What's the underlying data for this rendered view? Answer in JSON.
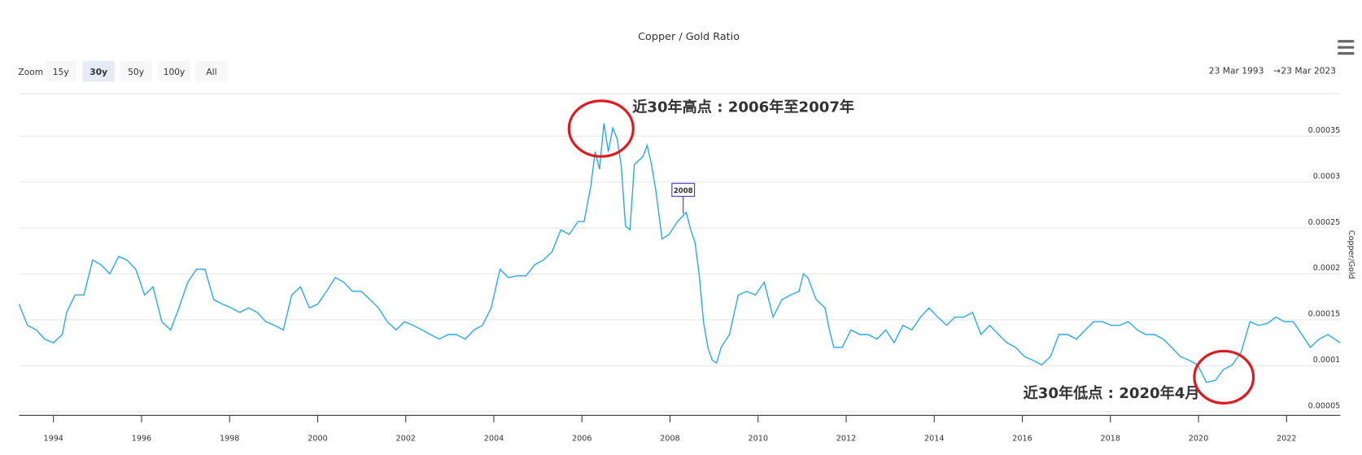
{
  "chart_data": {
    "type": "line",
    "title": "Copper / Gold Ratio",
    "zoom_label": "Zoom",
    "zoom_buttons": [
      "15y",
      "30y",
      "50y",
      "100y",
      "All"
    ],
    "selected_zoom": "30y",
    "date_range": {
      "from": "23 Mar 1993",
      "separator": "→",
      "to": "23 Mar 2023"
    },
    "y_label": "Copper/Gold",
    "xlim": [
      1993.22,
      2023.22
    ],
    "xticks": [
      1994,
      1996,
      1998,
      2000,
      2002,
      2004,
      2006,
      2008,
      2010,
      2012,
      2014,
      2016,
      2018,
      2020,
      2022
    ],
    "ylim": [
      4.6e-05,
      0.000396
    ],
    "yticks": [
      5e-05,
      0.0001,
      0.00015,
      0.0002,
      0.00025,
      0.0003,
      0.00035
    ],
    "grid": true,
    "series": [
      {
        "name": "Copper/Gold",
        "color": "#29a8e8",
        "x": [
          1993.22,
          1993.41,
          1993.61,
          1993.8,
          1994,
          1994.2,
          1994.3,
          1994.49,
          1994.69,
          1994.89,
          1995.08,
          1995.28,
          1995.48,
          1995.67,
          1995.87,
          1996.07,
          1996.26,
          1996.46,
          1996.66,
          1996.85,
          1997.05,
          1997.25,
          1997.44,
          1997.64,
          1997.84,
          1998.04,
          1998.23,
          1998.43,
          1998.63,
          1998.82,
          1999.02,
          1999.22,
          1999.41,
          1999.61,
          1999.81,
          2000.0,
          2000.2,
          2000.4,
          2000.59,
          2000.79,
          2000.99,
          2001.19,
          2001.38,
          2001.58,
          2001.78,
          2001.97,
          2002.17,
          2002.37,
          2002.56,
          2002.76,
          2002.96,
          2003.15,
          2003.35,
          2003.55,
          2003.74,
          2003.94,
          2004.14,
          2004.33,
          2004.53,
          2004.73,
          2004.93,
          2005.12,
          2005.32,
          2005.52,
          2005.71,
          2005.91,
          2006.05,
          2006.2,
          2006.3,
          2006.4,
          2006.5,
          2006.6,
          2006.7,
          2006.8,
          2006.89,
          2006.99,
          2007.09,
          2007.19,
          2007.39,
          2007.48,
          2007.58,
          2007.68,
          2007.82,
          2007.98,
          2008.17,
          2008.27,
          2008.37,
          2008.47,
          2008.57,
          2008.67,
          2008.76,
          2008.86,
          2008.96,
          2009.06,
          2009.16,
          2009.35,
          2009.55,
          2009.75,
          2009.94,
          2010.14,
          2010.34,
          2010.54,
          2010.73,
          2010.93,
          2011.03,
          2011.13,
          2011.32,
          2011.52,
          2011.62,
          2011.72,
          2011.91,
          2012.11,
          2012.31,
          2012.5,
          2012.7,
          2012.9,
          2013.09,
          2013.29,
          2013.49,
          2013.69,
          2013.88,
          2014.08,
          2014.28,
          2014.47,
          2014.67,
          2014.87,
          2015.06,
          2015.26,
          2015.46,
          2015.65,
          2015.85,
          2016.05,
          2016.24,
          2016.44,
          2016.64,
          2016.83,
          2017.03,
          2017.23,
          2017.43,
          2017.62,
          2017.82,
          2018.02,
          2018.21,
          2018.41,
          2018.61,
          2018.8,
          2019.0,
          2019.2,
          2019.39,
          2019.59,
          2019.79,
          2019.98,
          2020.18,
          2020.38,
          2020.57,
          2020.77,
          2020.97,
          2021.17,
          2021.36,
          2021.56,
          2021.76,
          2021.95,
          2022.15,
          2022.35,
          2022.54,
          2022.74,
          2022.94,
          2023.22
        ],
        "values": [
          0.000167,
          0.000144,
          0.000139,
          0.000129,
          0.000125,
          0.000134,
          0.000158,
          0.000177,
          0.000177,
          0.000215,
          0.00021,
          0.0002,
          0.000219,
          0.000215,
          0.000205,
          0.000177,
          0.000186,
          0.000148,
          0.000139,
          0.000163,
          0.000191,
          0.000205,
          0.000205,
          0.000172,
          0.000167,
          0.000163,
          0.000158,
          0.000163,
          0.000158,
          0.000148,
          0.000144,
          0.000139,
          0.000177,
          0.000186,
          0.000163,
          0.000167,
          0.000181,
          0.000196,
          0.000191,
          0.000181,
          0.000181,
          0.000172,
          0.000163,
          0.000148,
          0.000139,
          0.000148,
          0.000144,
          0.000139,
          0.000134,
          0.000129,
          0.000134,
          0.000134,
          0.000129,
          0.000139,
          0.000144,
          0.000163,
          0.000205,
          0.000196,
          0.000198,
          0.000198,
          0.00021,
          0.000215,
          0.000224,
          0.000248,
          0.000243,
          0.000257,
          0.000257,
          0.000295,
          0.000333,
          0.000314,
          0.000364,
          0.000333,
          0.000359,
          0.000347,
          0.000319,
          0.000252,
          0.000248,
          0.000319,
          0.000328,
          0.00034,
          0.000319,
          0.00029,
          0.000238,
          0.000243,
          0.000257,
          0.000262,
          0.000267,
          0.000248,
          0.000234,
          0.000196,
          0.000148,
          0.00012,
          0.000106,
          0.000103,
          0.00012,
          0.000134,
          0.000177,
          0.000181,
          0.000177,
          0.000191,
          0.000153,
          0.000172,
          0.000177,
          0.000181,
          0.0002,
          0.000196,
          0.000172,
          0.000163,
          0.000139,
          0.00012,
          0.00012,
          0.000139,
          0.000134,
          0.000134,
          0.000129,
          0.000139,
          0.000125,
          0.000144,
          0.000139,
          0.000153,
          0.000163,
          0.000153,
          0.000144,
          0.000153,
          0.000153,
          0.000158,
          0.000134,
          0.000144,
          0.000134,
          0.000125,
          0.00012,
          0.00011,
          0.000106,
          0.000101,
          0.00011,
          0.000134,
          0.000134,
          0.000129,
          0.000139,
          0.000148,
          0.000148,
          0.000144,
          0.000144,
          0.000148,
          0.000139,
          0.000134,
          0.000134,
          0.000129,
          0.00012,
          0.00011,
          0.000106,
          0.000101,
          8.2e-05,
          8.4e-05,
          9.6e-05,
          0.000101,
          0.000115,
          0.000148,
          0.000144,
          0.000146,
          0.000153,
          0.000148,
          0.000148,
          0.000134,
          0.00012,
          0.000129,
          0.000134,
          0.000125
        ]
      }
    ],
    "flag": {
      "x": 2008.3,
      "text": "2008"
    },
    "annotations": [
      "近30年高点 : 2006年至2007年",
      "近30年低点 : 2020年4月"
    ]
  }
}
